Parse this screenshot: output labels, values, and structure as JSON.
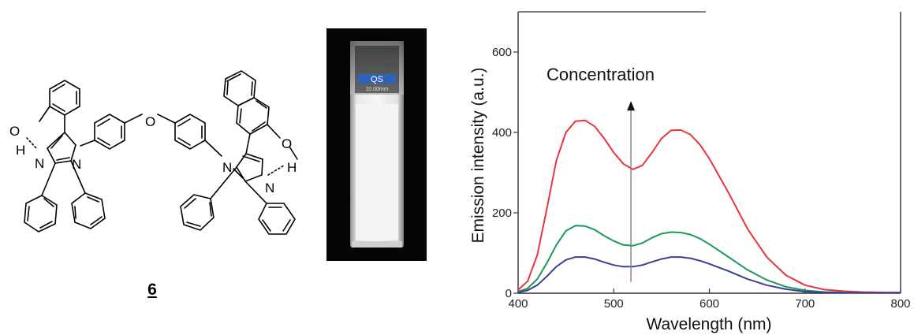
{
  "compound": {
    "label": "6",
    "atoms": {
      "O_left": "O",
      "H_left": "H",
      "N_left_nh": "N",
      "N_left_n": "N",
      "O_bridge": "O",
      "N_right_n": "N",
      "N_right_nh": "N",
      "O_right": "O",
      "H_right": "H"
    }
  },
  "photo": {
    "cuvette_text_1": "QS",
    "cuvette_text_2": "10.00mm"
  },
  "chart_data": {
    "type": "line",
    "title": "",
    "xlabel": "Wavelength (nm)",
    "ylabel": "Emission intensity (a.u.)",
    "xlim": [
      400,
      800
    ],
    "ylim": [
      0,
      700
    ],
    "xticks": [
      "400",
      "500",
      "600",
      "700",
      "800"
    ],
    "yticks": [
      "0",
      "200",
      "400",
      "600"
    ],
    "grid": false,
    "annotation": "Concentration",
    "arrow": {
      "x": 518,
      "y_from": 28,
      "y_to": 478
    },
    "series": [
      {
        "color": "#e8343a",
        "x": [
          400,
          410,
          420,
          430,
          440,
          450,
          460,
          470,
          480,
          490,
          500,
          510,
          520,
          530,
          540,
          550,
          560,
          570,
          580,
          590,
          600,
          620,
          640,
          660,
          680,
          700,
          720,
          740,
          760,
          780,
          800
        ],
        "y": [
          8,
          30,
          95,
          210,
          330,
          400,
          428,
          430,
          415,
          385,
          350,
          322,
          308,
          318,
          350,
          385,
          405,
          406,
          395,
          370,
          335,
          250,
          160,
          90,
          45,
          20,
          9,
          5,
          3,
          2,
          2
        ]
      },
      {
        "color": "#1a9a56",
        "x": [
          400,
          410,
          420,
          430,
          440,
          450,
          460,
          470,
          480,
          490,
          500,
          510,
          520,
          530,
          540,
          550,
          560,
          570,
          580,
          590,
          600,
          620,
          640,
          660,
          680,
          700,
          720,
          740,
          760,
          780,
          800
        ],
        "y": [
          4,
          12,
          35,
          75,
          120,
          155,
          168,
          167,
          158,
          143,
          130,
          120,
          118,
          125,
          138,
          148,
          152,
          151,
          146,
          136,
          122,
          90,
          58,
          33,
          16,
          7,
          3,
          2,
          1,
          1,
          1
        ]
      },
      {
        "color": "#3a3f96",
        "x": [
          400,
          410,
          420,
          430,
          440,
          450,
          460,
          470,
          480,
          490,
          500,
          510,
          520,
          530,
          540,
          550,
          560,
          570,
          580,
          590,
          600,
          620,
          640,
          660,
          680,
          700,
          720,
          740,
          760,
          780,
          800
        ],
        "y": [
          2,
          7,
          20,
          42,
          66,
          83,
          90,
          90,
          85,
          77,
          70,
          66,
          66,
          70,
          78,
          85,
          90,
          90,
          87,
          81,
          73,
          55,
          35,
          20,
          10,
          4,
          2,
          1,
          1,
          1,
          1
        ]
      }
    ]
  }
}
